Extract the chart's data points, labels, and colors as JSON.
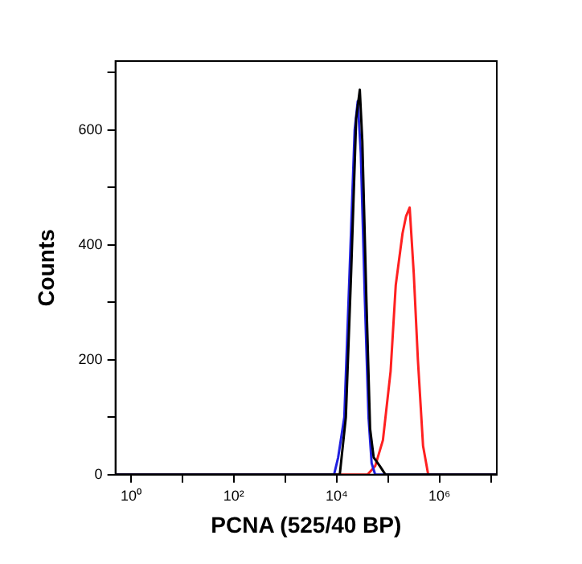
{
  "chart_data": {
    "type": "line",
    "xlabel": "PCNA (525/40 BP)",
    "ylabel": "Counts",
    "log": "x",
    "grid": false,
    "legend": false,
    "marker": "none",
    "line_style": "solid",
    "xlim": [
      0.5,
      13000000
    ],
    "xticks": [
      {
        "value": 1,
        "label": "10⁰"
      },
      {
        "value": 10,
        "label": null
      },
      {
        "value": 100,
        "label": "10²"
      },
      {
        "value": 1000,
        "label": null
      },
      {
        "value": 10000,
        "label": "10⁴"
      },
      {
        "value": 100000,
        "label": null
      },
      {
        "value": 1000000,
        "label": "10⁶"
      },
      {
        "value": 10000000,
        "label": null
      }
    ],
    "ylim": [
      0,
      720
    ],
    "yticks": [
      0,
      {
        "value": 100,
        "label": null
      },
      200,
      {
        "value": 300,
        "label": null
      },
      400,
      {
        "value": 500,
        "label": null
      },
      600,
      {
        "value": 700,
        "label": null
      }
    ],
    "series": [
      {
        "color": "#000000",
        "x": [
          0.5,
          11500,
          15100,
          19100,
          24000,
          28200,
          31600,
          38000,
          44700,
          52500,
          69200,
          89100,
          13000000
        ],
        "values": [
          0,
          0,
          100,
          350,
          620,
          670,
          580,
          300,
          80,
          30,
          15,
          0,
          0
        ]
      },
      {
        "color": "#2020e0",
        "x": [
          0.5,
          8900,
          10700,
          14100,
          17800,
          22400,
          25700,
          29500,
          35500,
          41700,
          47900,
          56200,
          13000000
        ],
        "values": [
          0,
          0,
          30,
          100,
          350,
          600,
          650,
          560,
          300,
          100,
          20,
          0,
          0
        ]
      },
      {
        "color": "#ff2020",
        "x": [
          0.5,
          39800,
          56200,
          79400,
          112000,
          141000,
          191000,
          224000,
          263000,
          316000,
          380000,
          479000,
          603000,
          13000000
        ],
        "values": [
          0,
          0,
          15,
          60,
          180,
          330,
          420,
          450,
          465,
          350,
          200,
          50,
          0,
          0
        ]
      }
    ]
  }
}
